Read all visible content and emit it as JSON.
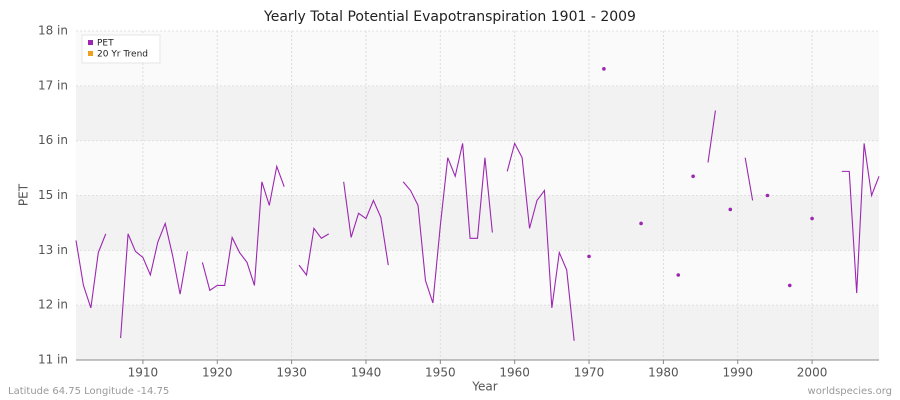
{
  "chart_data": {
    "type": "line",
    "title": "Yearly Total Potential Evapotranspiration 1901 - 2009",
    "x_label": "Year",
    "y_label": "PET",
    "footer_left": "Latitude 64.75 Longitude -14.75",
    "footer_right": "worldspecies.org",
    "legend": "top-left",
    "grid": true,
    "xlim": [
      1901,
      2009
    ],
    "xticks": [
      1910,
      1920,
      1930,
      1940,
      1950,
      1960,
      1970,
      1980,
      1990,
      2000
    ],
    "ylim": [
      11,
      18
    ],
    "yticks": [
      {
        "value": 11,
        "label": "11 in"
      },
      {
        "value": 12,
        "label": "12 in"
      },
      {
        "value": 13,
        "label": "13 in"
      },
      {
        "value": 15,
        "label": "15 in"
      },
      {
        "value": 16,
        "label": "16 in"
      },
      {
        "value": 17,
        "label": "17 in"
      },
      {
        "value": 18,
        "label": "18 in"
      }
    ],
    "x": [
      1901,
      1902,
      1903,
      1904,
      1905,
      1906,
      1907,
      1908,
      1909,
      1910,
      1911,
      1912,
      1913,
      1914,
      1915,
      1916,
      1917,
      1918,
      1919,
      1920,
      1921,
      1922,
      1923,
      1924,
      1925,
      1926,
      1927,
      1928,
      1929,
      1930,
      1931,
      1932,
      1933,
      1934,
      1935,
      1936,
      1937,
      1938,
      1939,
      1940,
      1941,
      1942,
      1943,
      1944,
      1945,
      1946,
      1947,
      1948,
      1949,
      1950,
      1951,
      1952,
      1953,
      1954,
      1955,
      1956,
      1957,
      1958,
      1959,
      1960,
      1961,
      1962,
      1963,
      1964,
      1965,
      1966,
      1967,
      1968,
      1969,
      1970,
      1971,
      1972,
      1973,
      1974,
      1975,
      1976,
      1977,
      1978,
      1979,
      1980,
      1981,
      1982,
      1983,
      1984,
      1985,
      1986,
      1987,
      1988,
      1989,
      1990,
      1991,
      1992,
      1993,
      1994,
      1995,
      1996,
      1997,
      1998,
      1999,
      2000,
      2001,
      2002,
      2003,
      2004,
      2005,
      2006,
      2007,
      2008,
      2009
    ],
    "series": [
      {
        "name": "PET",
        "color": "#9c27b0",
        "values": [
          13.36,
          12.36,
          11.95,
          12.96,
          13.6,
          null,
          11.4,
          13.6,
          12.98,
          12.87,
          12.55,
          13.3,
          13.98,
          12.9,
          12.2,
          12.98,
          null,
          12.78,
          12.27,
          12.36,
          12.36,
          13.47,
          12.96,
          12.78,
          12.36,
          15.25,
          14.64,
          15.53,
          15.16,
          null,
          12.73,
          12.55,
          13.8,
          13.44,
          13.6,
          null,
          15.25,
          13.47,
          14.35,
          14.16,
          14.82,
          14.2,
          12.73,
          null,
          15.25,
          15.09,
          14.64,
          12.45,
          12.04,
          13.9,
          15.69,
          15.35,
          15.95,
          13.44,
          13.44,
          15.69,
          13.65,
          null,
          15.44,
          15.95,
          15.69,
          13.8,
          14.82,
          15.09,
          11.95,
          12.96,
          12.64,
          11.35,
          null,
          12.89,
          null,
          17.31,
          null,
          null,
          null,
          null,
          13.98,
          null,
          null,
          null,
          null,
          12.55,
          null,
          15.35,
          null,
          15.6,
          16.55,
          null,
          14.49,
          null,
          15.69,
          14.82,
          null,
          15.0,
          null,
          null,
          12.36,
          null,
          null,
          14.16,
          null,
          null,
          null,
          15.44,
          15.44,
          12.22,
          15.95,
          15.0,
          15.35
        ]
      },
      {
        "name": "20 Yr Trend",
        "color": "#f0a020",
        "values": [
          null,
          null,
          null,
          null,
          null,
          null,
          null,
          null,
          null,
          null,
          null,
          null,
          null,
          null,
          null,
          null,
          null,
          null,
          null,
          null,
          null,
          null,
          null,
          null,
          null,
          null,
          null,
          null,
          null,
          null,
          null,
          null,
          null,
          null,
          null,
          null,
          null,
          null,
          null,
          null,
          null,
          null,
          null,
          null,
          null,
          null,
          null,
          null,
          null,
          null,
          null,
          null,
          null,
          null,
          null,
          null,
          null,
          null,
          null,
          null,
          null,
          null,
          null,
          null,
          null,
          null,
          null,
          null,
          null,
          null,
          null,
          null,
          null,
          null,
          null,
          null,
          null,
          null,
          null,
          null,
          null,
          null,
          null,
          null,
          null,
          null,
          null,
          null,
          null,
          null,
          null,
          null,
          null,
          null,
          null,
          null,
          null,
          null,
          null,
          null,
          null,
          null,
          null,
          null,
          null,
          null,
          null,
          null,
          null
        ]
      }
    ]
  }
}
